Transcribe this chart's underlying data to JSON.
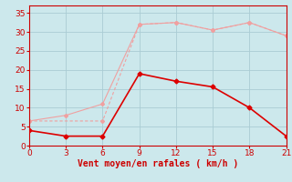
{
  "x": [
    0,
    3,
    6,
    9,
    12,
    15,
    18,
    21
  ],
  "y_dark": [
    4,
    2.5,
    2.5,
    19,
    17,
    15.5,
    10,
    2.5
  ],
  "y_light1": [
    6.5,
    8,
    11,
    32,
    32.5,
    30.5,
    32.5,
    29
  ],
  "x_light2": [
    0,
    6,
    9,
    12,
    15,
    18,
    21
  ],
  "y_light2": [
    6.5,
    6.5,
    32,
    32.5,
    30.5,
    32.5,
    29
  ],
  "color_dark": "#dd0000",
  "color_light1": "#f0a0a0",
  "color_light2": "#f0a0a0",
  "bg_color": "#cce8ec",
  "xlabel": "Vent moyen/en rafales ( km/h )",
  "xlabel_color": "#cc0000",
  "xlabel_fontsize": 7,
  "ylabel_ticks": [
    0,
    5,
    10,
    15,
    20,
    25,
    30,
    35
  ],
  "xticks": [
    0,
    3,
    6,
    9,
    12,
    15,
    18,
    21
  ],
  "ylim": [
    0,
    37
  ],
  "xlim": [
    0,
    21
  ],
  "grid_color": "#aaccd4",
  "tick_color": "#cc0000",
  "tick_fontsize": 6.5,
  "linewidth_dark": 1.2,
  "linewidth_light": 0.8,
  "markersize_dark": 2.5,
  "markersize_light": 2.0
}
